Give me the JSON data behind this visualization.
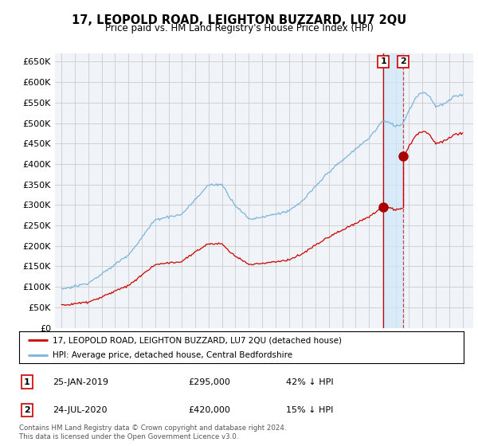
{
  "title": "17, LEOPOLD ROAD, LEIGHTON BUZZARD, LU7 2QU",
  "subtitle": "Price paid vs. HM Land Registry's House Price Index (HPI)",
  "ylim": [
    0,
    670000
  ],
  "yticks": [
    0,
    50000,
    100000,
    150000,
    200000,
    250000,
    300000,
    350000,
    400000,
    450000,
    500000,
    550000,
    600000,
    650000
  ],
  "legend_line1": "17, LEOPOLD ROAD, LEIGHTON BUZZARD, LU7 2QU (detached house)",
  "legend_line2": "HPI: Average price, detached house, Central Bedfordshire",
  "sale1_date": "25-JAN-2019",
  "sale1_price": 295000,
  "sale1_note": "42% ↓ HPI",
  "sale2_date": "24-JUL-2020",
  "sale2_price": 420000,
  "sale2_note": "15% ↓ HPI",
  "sale1_x": 2019.07,
  "sale2_x": 2020.56,
  "hpi_line_color": "#7ab4dc",
  "price_line_color": "#cc0000",
  "sale_marker_color": "#aa0000",
  "vline1_color": "#cc0000",
  "vline2_color": "#cc4444",
  "shade_color": "#d0e8f8",
  "grid_color": "#cccccc",
  "bg_color": "#f0f4f8",
  "footnote": "Contains HM Land Registry data © Crown copyright and database right 2024.\nThis data is licensed under the Open Government Licence v3.0."
}
